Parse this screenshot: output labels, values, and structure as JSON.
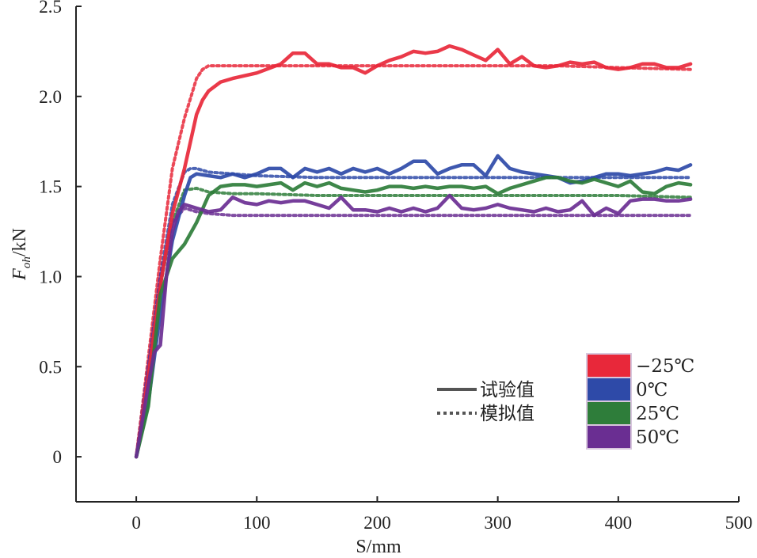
{
  "chart_data": {
    "type": "line",
    "xlabel": "S/mm",
    "ylabel_main": "F",
    "ylabel_sub": "oh",
    "ylabel_unit": "/kN",
    "xlim": [
      -50,
      500
    ],
    "ylim": [
      -0.25,
      2.5
    ],
    "x_ticks": [
      0,
      100,
      200,
      300,
      400,
      500
    ],
    "x_tick_labels": [
      "0",
      "100",
      "200",
      "300",
      "400",
      "500"
    ],
    "y_ticks": [
      0,
      0.5,
      1.0,
      1.5,
      2.0,
      2.5
    ],
    "y_tick_labels": [
      "0",
      "0.5",
      "1.0",
      "1.5",
      "2.0",
      "2.5"
    ],
    "grid": false,
    "legend_placement": "bottom-right",
    "style_legend": [
      {
        "label": "试验值",
        "style": "solid"
      },
      {
        "label": "模拟值",
        "style": "dotted"
      }
    ],
    "series": [
      {
        "name": "−25℃",
        "color": "#e8283a",
        "experimental": {
          "x": [
            0,
            10,
            20,
            30,
            40,
            45,
            50,
            55,
            60,
            70,
            80,
            100,
            120,
            130,
            140,
            150,
            160,
            170,
            180,
            190,
            200,
            210,
            220,
            230,
            240,
            250,
            260,
            270,
            280,
            290,
            300,
            310,
            320,
            330,
            340,
            350,
            360,
            370,
            380,
            390,
            400,
            410,
            420,
            430,
            440,
            450,
            460
          ],
          "y": [
            0,
            0.45,
            0.95,
            1.35,
            1.6,
            1.75,
            1.9,
            1.98,
            2.03,
            2.08,
            2.1,
            2.13,
            2.18,
            2.24,
            2.24,
            2.18,
            2.18,
            2.16,
            2.16,
            2.13,
            2.17,
            2.2,
            2.22,
            2.25,
            2.24,
            2.25,
            2.28,
            2.26,
            2.23,
            2.2,
            2.26,
            2.18,
            2.22,
            2.17,
            2.16,
            2.17,
            2.19,
            2.18,
            2.19,
            2.16,
            2.15,
            2.16,
            2.18,
            2.18,
            2.16,
            2.16,
            2.18
          ]
        },
        "simulated": {
          "x": [
            0,
            10,
            20,
            30,
            40,
            50,
            55,
            60,
            80,
            100,
            150,
            200,
            250,
            300,
            350,
            400,
            460
          ],
          "y": [
            0,
            0.55,
            1.1,
            1.6,
            1.88,
            2.1,
            2.15,
            2.17,
            2.17,
            2.17,
            2.17,
            2.17,
            2.17,
            2.17,
            2.17,
            2.16,
            2.15
          ]
        }
      },
      {
        "name": "0℃",
        "color": "#2e4aa8",
        "experimental": {
          "x": [
            0,
            10,
            20,
            30,
            40,
            45,
            50,
            60,
            70,
            80,
            90,
            100,
            110,
            120,
            130,
            140,
            150,
            160,
            170,
            180,
            190,
            200,
            210,
            220,
            230,
            240,
            250,
            260,
            270,
            280,
            290,
            300,
            310,
            320,
            330,
            340,
            350,
            360,
            370,
            380,
            390,
            400,
            410,
            420,
            430,
            440,
            450,
            460
          ],
          "y": [
            0,
            0.3,
            0.8,
            1.2,
            1.45,
            1.55,
            1.57,
            1.56,
            1.55,
            1.57,
            1.55,
            1.57,
            1.6,
            1.6,
            1.55,
            1.6,
            1.58,
            1.6,
            1.57,
            1.6,
            1.58,
            1.6,
            1.57,
            1.6,
            1.64,
            1.64,
            1.57,
            1.6,
            1.62,
            1.62,
            1.56,
            1.67,
            1.6,
            1.58,
            1.57,
            1.56,
            1.55,
            1.52,
            1.53,
            1.55,
            1.57,
            1.57,
            1.56,
            1.57,
            1.58,
            1.6,
            1.59,
            1.62
          ]
        },
        "simulated": {
          "x": [
            0,
            10,
            20,
            30,
            40,
            45,
            50,
            60,
            80,
            100,
            150,
            200,
            250,
            300,
            350,
            400,
            460
          ],
          "y": [
            0,
            0.5,
            1.0,
            1.4,
            1.58,
            1.6,
            1.6,
            1.58,
            1.57,
            1.56,
            1.55,
            1.55,
            1.55,
            1.55,
            1.55,
            1.55,
            1.55
          ]
        }
      },
      {
        "name": "25℃",
        "color": "#2e7d3a",
        "experimental": {
          "x": [
            0,
            10,
            15,
            20,
            30,
            40,
            50,
            60,
            70,
            80,
            90,
            100,
            110,
            120,
            130,
            140,
            150,
            160,
            170,
            180,
            190,
            200,
            210,
            220,
            230,
            240,
            250,
            260,
            270,
            280,
            290,
            300,
            310,
            320,
            330,
            340,
            350,
            360,
            370,
            380,
            390,
            400,
            410,
            420,
            430,
            440,
            450,
            460
          ],
          "y": [
            0,
            0.28,
            0.6,
            0.9,
            1.1,
            1.18,
            1.3,
            1.45,
            1.5,
            1.51,
            1.51,
            1.5,
            1.51,
            1.52,
            1.48,
            1.52,
            1.5,
            1.52,
            1.49,
            1.48,
            1.47,
            1.48,
            1.5,
            1.5,
            1.49,
            1.5,
            1.49,
            1.5,
            1.5,
            1.49,
            1.5,
            1.46,
            1.49,
            1.51,
            1.53,
            1.55,
            1.55,
            1.53,
            1.52,
            1.54,
            1.52,
            1.5,
            1.53,
            1.47,
            1.46,
            1.5,
            1.52,
            1.51
          ]
        },
        "simulated": {
          "x": [
            0,
            10,
            20,
            30,
            40,
            50,
            60,
            80,
            100,
            150,
            200,
            250,
            300,
            350,
            400,
            460
          ],
          "y": [
            0,
            0.45,
            0.95,
            1.3,
            1.48,
            1.49,
            1.47,
            1.46,
            1.46,
            1.45,
            1.45,
            1.45,
            1.45,
            1.45,
            1.45,
            1.44
          ]
        }
      },
      {
        "name": "50℃",
        "color": "#6a2e92",
        "experimental": {
          "x": [
            0,
            10,
            15,
            20,
            25,
            30,
            35,
            40,
            45,
            50,
            55,
            60,
            70,
            80,
            90,
            100,
            110,
            120,
            130,
            140,
            150,
            160,
            170,
            180,
            190,
            200,
            210,
            220,
            230,
            240,
            250,
            260,
            270,
            280,
            290,
            300,
            310,
            320,
            330,
            340,
            350,
            360,
            370,
            380,
            390,
            400,
            410,
            420,
            430,
            440,
            450,
            460
          ],
          "y": [
            0,
            0.4,
            0.58,
            0.62,
            1.0,
            1.25,
            1.36,
            1.4,
            1.39,
            1.38,
            1.37,
            1.36,
            1.37,
            1.44,
            1.41,
            1.4,
            1.42,
            1.41,
            1.42,
            1.42,
            1.4,
            1.38,
            1.44,
            1.37,
            1.37,
            1.36,
            1.38,
            1.36,
            1.38,
            1.36,
            1.38,
            1.45,
            1.38,
            1.37,
            1.38,
            1.4,
            1.38,
            1.37,
            1.36,
            1.38,
            1.36,
            1.37,
            1.42,
            1.34,
            1.38,
            1.35,
            1.42,
            1.43,
            1.43,
            1.42,
            1.42,
            1.43
          ]
        },
        "simulated": {
          "x": [
            0,
            10,
            20,
            30,
            40,
            50,
            60,
            80,
            100,
            150,
            200,
            250,
            300,
            350,
            400,
            460
          ],
          "y": [
            0,
            0.5,
            1.0,
            1.3,
            1.38,
            1.36,
            1.35,
            1.34,
            1.34,
            1.34,
            1.34,
            1.34,
            1.34,
            1.34,
            1.34,
            1.34
          ]
        }
      }
    ]
  }
}
